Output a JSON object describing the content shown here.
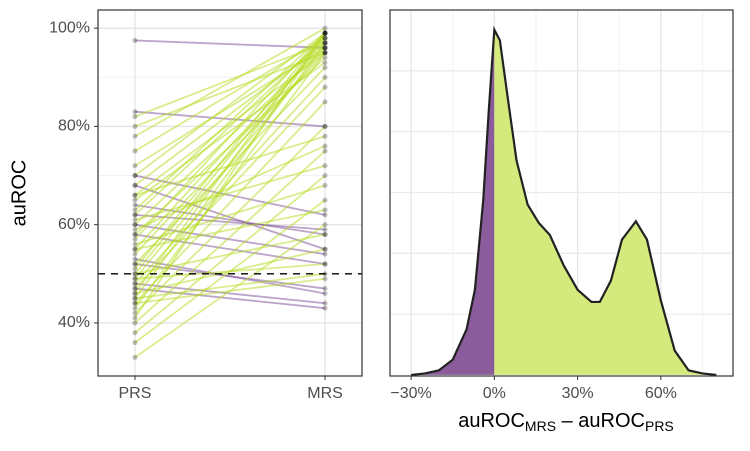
{
  "chart_data": [
    {
      "type": "slope",
      "categories": [
        "PRS",
        "MRS"
      ],
      "ylabel": "auROC",
      "ylim": [
        29.2,
        103.7
      ],
      "yticks": [
        {
          "value": 40,
          "label": "40%"
        },
        {
          "value": 60,
          "label": "60%"
        },
        {
          "value": 80,
          "label": "80%"
        },
        {
          "value": 100,
          "label": "100%"
        }
      ],
      "yminor": [
        50,
        70,
        90
      ],
      "hline": 50,
      "up_color": "#b3dc1c",
      "down_color": "#7a4a96",
      "point_color": "#000000",
      "prs": [
        97.5,
        83,
        82,
        80,
        78,
        75,
        72,
        70,
        68,
        66,
        65,
        63,
        62,
        60,
        58,
        57,
        55,
        54,
        52,
        51,
        50,
        49,
        48,
        47,
        46,
        45,
        44,
        43,
        42,
        41,
        40,
        38,
        36,
        33,
        68,
        64,
        61,
        58,
        55,
        52,
        50,
        48,
        46,
        44,
        70,
        66,
        60,
        56,
        53,
        49,
        47,
        45,
        59,
        62
      ],
      "mrs": [
        96,
        80,
        97,
        95,
        100,
        98,
        96,
        99,
        97,
        95,
        93,
        99,
        98,
        96,
        94,
        99,
        97,
        95,
        92,
        99,
        98,
        96,
        90,
        88,
        99,
        97,
        85,
        95,
        80,
        99,
        75,
        70,
        65,
        60,
        55,
        58,
        72,
        52,
        63,
        47,
        58,
        44,
        55,
        49,
        62,
        78,
        54,
        68,
        46,
        52,
        43,
        50,
        76,
        59
      ]
    },
    {
      "type": "density",
      "xlabel": [
        "auROC",
        "MRS",
        " – auROC",
        "PRS"
      ],
      "xlim": [
        -37.6,
        86
      ],
      "xticks": [
        {
          "value": -30,
          "label": "−30%"
        },
        {
          "value": 0,
          "label": "0%"
        },
        {
          "value": 30,
          "label": "30%"
        },
        {
          "value": 60,
          "label": "60%"
        }
      ],
      "xminor": [
        -15,
        15,
        45,
        75
      ],
      "ylim": [
        -7e-05,
        0.024
      ],
      "ygrid": [
        0.004,
        0.008,
        0.012,
        0.016,
        0.02
      ],
      "neg_color": "#8a5c9c",
      "pos_color": "#d5ea7c",
      "line_color": "#222222",
      "x": [
        -30,
        -25,
        -20,
        -15,
        -10,
        -7,
        -4,
        -2,
        0,
        2,
        5,
        8,
        12,
        16,
        20,
        25,
        30,
        35,
        38,
        42,
        46,
        51,
        55,
        60,
        65,
        70,
        75,
        80
      ],
      "values": [
        0,
        0.0001,
        0.0003,
        0.001,
        0.003,
        0.0056,
        0.0115,
        0.0174,
        0.0227,
        0.022,
        0.018,
        0.0141,
        0.0112,
        0.01,
        0.0092,
        0.0072,
        0.0056,
        0.0048,
        0.0048,
        0.0062,
        0.0089,
        0.0101,
        0.0089,
        0.0049,
        0.0016,
        0.0003,
        0.0001,
        0
      ]
    }
  ]
}
